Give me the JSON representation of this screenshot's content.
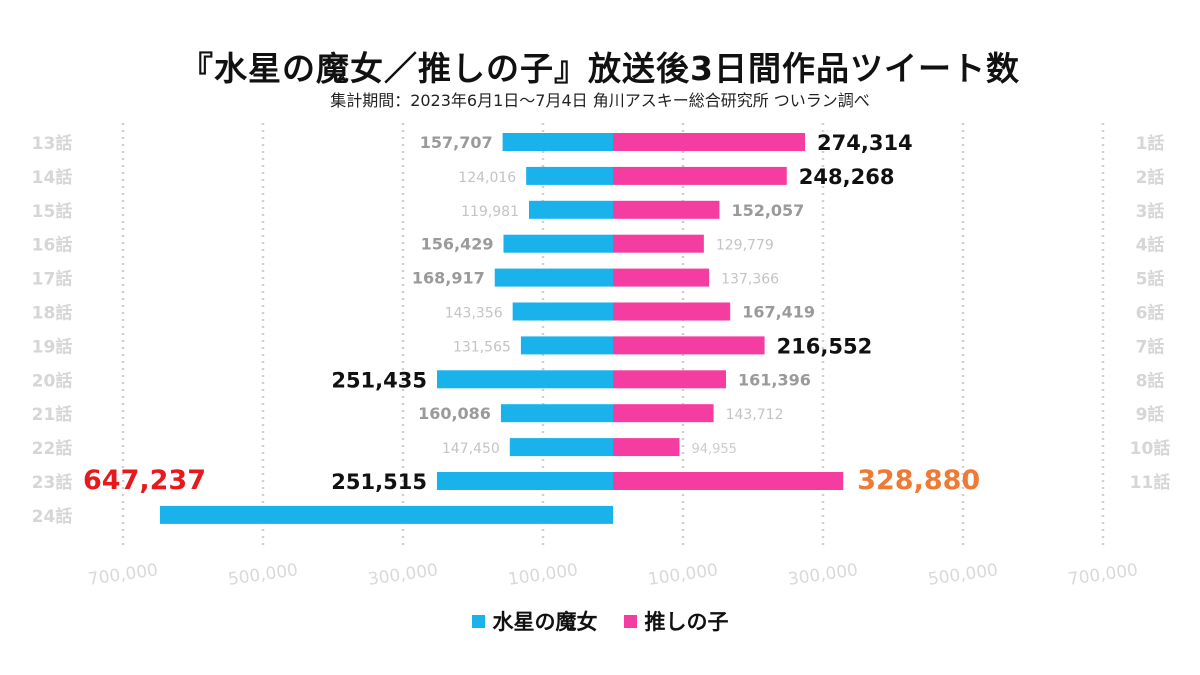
{
  "chart_data": {
    "type": "bar",
    "orientation": "horizontal-butterfly",
    "title": "『水星の魔女／推しの子』放送後3日間作品ツイート数",
    "subtitle": "集計期間：2023年6月1日〜7月4日 角川アスキー総合研究所 ついラン調べ",
    "xlim": [
      -700000,
      700000
    ],
    "ticks": [
      -700000,
      -500000,
      -300000,
      -100000,
      100000,
      300000,
      500000,
      700000
    ],
    "tick_labels": [
      "700,000",
      "500,000",
      "300,000",
      "100,000",
      "100,000",
      "300,000",
      "500,000",
      "700,000"
    ],
    "grid": true,
    "legend_position": "bottom",
    "series": [
      {
        "name": "水星の魔女",
        "side": "left",
        "color": "#1ab2ea",
        "categories": [
          "13話",
          "14話",
          "15話",
          "16話",
          "17話",
          "18話",
          "19話",
          "20話",
          "21話",
          "22話",
          "23話",
          "24話"
        ],
        "values": [
          157707,
          124016,
          119981,
          156429,
          168917,
          143356,
          131565,
          251435,
          160086,
          147450,
          251515,
          647237
        ],
        "labels": [
          "157,707",
          "124,016",
          "119,981",
          "156,429",
          "168,917",
          "143,356",
          "131,565",
          "251,435",
          "160,086",
          "147,450",
          "251,515",
          "647,237"
        ]
      },
      {
        "name": "推しの子",
        "side": "right",
        "color": "#f53ca0",
        "categories": [
          "1話",
          "2話",
          "3話",
          "4話",
          "5話",
          "6話",
          "7話",
          "8話",
          "9話",
          "10話",
          "11話"
        ],
        "values": [
          274314,
          248268,
          152057,
          129779,
          137366,
          167419,
          216552,
          161396,
          143712,
          94955,
          328880
        ],
        "labels": [
          "274,314",
          "248,268",
          "152,057",
          "129,779",
          "137,366",
          "167,419",
          "216,552",
          "161,396",
          "143,712",
          "94,955",
          "328,880"
        ]
      }
    ],
    "label_styles": {
      "left": [
        "medium",
        "small",
        "small",
        "medium",
        "medium",
        "small",
        "small",
        "large",
        "medium",
        "small",
        "large",
        "highlight-red"
      ],
      "right": [
        "large",
        "large",
        "medium",
        "small",
        "small",
        "medium",
        "large",
        "medium",
        "small",
        "tiny",
        "highlight-orange"
      ]
    },
    "style_colors": {
      "large": "#111111",
      "medium": "#9a9a9a",
      "small": "#c4c4c4",
      "tiny": "#cccccc",
      "highlight-red": "#e8191c",
      "highlight-orange": "#ee7a33",
      "category": "#d6d6d6",
      "tick": "#d9d9d9",
      "grid": "#cfcfcf"
    }
  }
}
